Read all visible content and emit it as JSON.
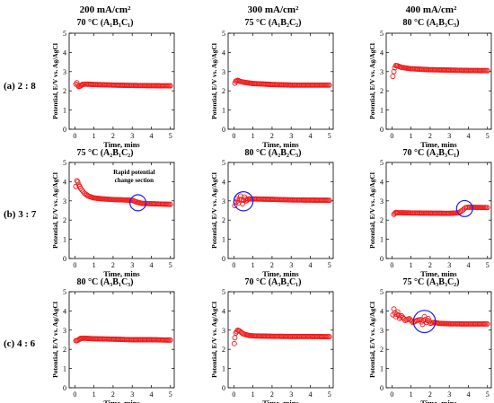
{
  "column_headers": [
    {
      "density": "200 mA/cm²"
    },
    {
      "density": "300 mA/cm²"
    },
    {
      "density": "400 mA/cm²"
    }
  ],
  "row_labels": [
    "(a) 2 : 8",
    "(b) 3 : 7",
    "(c) 4 : 6"
  ],
  "axis": {
    "xlabel": "Time, mins",
    "ylabel": "Potential, E/V vs. Ag/AgCl",
    "xlim": [
      -0.3,
      5.2
    ],
    "ylim": [
      0,
      5
    ],
    "xticks": [
      "0",
      "1",
      "2",
      "3",
      "4",
      "5"
    ],
    "yticks": [
      "0",
      "1",
      "2",
      "3",
      "4",
      "5"
    ]
  },
  "colors": {
    "series": "#ee1c1c",
    "circle": "#1a1aff"
  },
  "annotation_text": "Rapid potential change section",
  "chart_data": [
    {
      "type": "scatter",
      "title": "70 °C (A₁B₁C₁)",
      "panel": "a1",
      "points": [
        [
          0.05,
          2.35
        ],
        [
          0.1,
          2.42
        ],
        [
          0.15,
          2.3
        ],
        [
          0.2,
          2.22
        ],
        [
          0.3,
          2.26
        ],
        [
          0.4,
          2.34
        ],
        [
          0.6,
          2.35
        ],
        [
          1,
          2.33
        ],
        [
          2,
          2.3
        ],
        [
          3,
          2.28
        ],
        [
          4,
          2.27
        ],
        [
          5,
          2.26
        ]
      ],
      "circles": []
    },
    {
      "type": "scatter",
      "title": "75 °C (A₁B₂C₂)",
      "panel": "a2",
      "points": [
        [
          0.05,
          2.4
        ],
        [
          0.1,
          2.5
        ],
        [
          0.2,
          2.55
        ],
        [
          0.3,
          2.5
        ],
        [
          0.5,
          2.45
        ],
        [
          1,
          2.38
        ],
        [
          2,
          2.33
        ],
        [
          3,
          2.3
        ],
        [
          4,
          2.3
        ],
        [
          5,
          2.3
        ]
      ],
      "circles": []
    },
    {
      "type": "scatter",
      "title": "80 °C (A₁B₃C₃)",
      "panel": "a3",
      "points": [
        [
          0.05,
          2.75
        ],
        [
          0.1,
          3.0
        ],
        [
          0.15,
          3.2
        ],
        [
          0.2,
          3.32
        ],
        [
          0.3,
          3.3
        ],
        [
          0.5,
          3.22
        ],
        [
          1,
          3.15
        ],
        [
          2,
          3.1
        ],
        [
          3,
          3.08
        ],
        [
          4,
          3.06
        ],
        [
          5,
          3.05
        ]
      ],
      "circles": []
    },
    {
      "type": "scatter",
      "title": "75 °C (A₂B₁C₂)",
      "panel": "b1",
      "points": [
        [
          0.05,
          3.75
        ],
        [
          0.1,
          4.05
        ],
        [
          0.15,
          4.0
        ],
        [
          0.2,
          3.85
        ],
        [
          0.3,
          3.65
        ],
        [
          0.5,
          3.4
        ],
        [
          0.7,
          3.25
        ],
        [
          1,
          3.15
        ],
        [
          1.5,
          3.1
        ],
        [
          2,
          3.07
        ],
        [
          2.5,
          3.05
        ],
        [
          3,
          3.03
        ],
        [
          3.2,
          2.95
        ],
        [
          3.5,
          2.87
        ],
        [
          4,
          2.85
        ],
        [
          5,
          2.82
        ]
      ],
      "circles": [
        {
          "x": 3.3,
          "y": 2.9,
          "r": 0.42
        }
      ]
    },
    {
      "type": "scatter",
      "title": "80 °C (A₂B₂C₃)",
      "panel": "b2",
      "points": [
        [
          0.05,
          2.75
        ],
        [
          0.15,
          3.1
        ],
        [
          0.25,
          2.9
        ],
        [
          0.35,
          3.25
        ],
        [
          0.45,
          2.85
        ],
        [
          0.55,
          3.2
        ],
        [
          0.65,
          3.0
        ],
        [
          0.75,
          3.1
        ],
        [
          1,
          3.1
        ],
        [
          2,
          3.08
        ],
        [
          3,
          3.05
        ],
        [
          4,
          3.04
        ],
        [
          5,
          3.03
        ]
      ],
      "circles": [
        {
          "x": 0.5,
          "y": 2.98,
          "r": 0.5
        }
      ]
    },
    {
      "type": "scatter",
      "title": "70 °C (A₂B₃C₁)",
      "panel": "b3",
      "points": [
        [
          0.1,
          2.3
        ],
        [
          0.2,
          2.4
        ],
        [
          0.3,
          2.38
        ],
        [
          0.5,
          2.38
        ],
        [
          1,
          2.37
        ],
        [
          2,
          2.36
        ],
        [
          3,
          2.35
        ],
        [
          3.5,
          2.38
        ],
        [
          3.7,
          2.52
        ],
        [
          3.85,
          2.65
        ],
        [
          4,
          2.67
        ],
        [
          4.5,
          2.66
        ],
        [
          5,
          2.65
        ]
      ],
      "circles": [
        {
          "x": 3.8,
          "y": 2.6,
          "r": 0.42
        }
      ]
    },
    {
      "type": "scatter",
      "title": "80 °C (A₃B₁C₃)",
      "panel": "c1",
      "points": [
        [
          0.05,
          2.45
        ],
        [
          0.1,
          2.45
        ],
        [
          0.2,
          2.5
        ],
        [
          0.3,
          2.57
        ],
        [
          0.5,
          2.58
        ],
        [
          1,
          2.55
        ],
        [
          2,
          2.53
        ],
        [
          3,
          2.5
        ],
        [
          4,
          2.5
        ],
        [
          5,
          2.48
        ]
      ],
      "circles": []
    },
    {
      "type": "scatter",
      "title": "70 °C (A₃B₂C₁)",
      "panel": "c2",
      "points": [
        [
          0.02,
          2.3
        ],
        [
          0.05,
          2.6
        ],
        [
          0.1,
          2.85
        ],
        [
          0.2,
          3.0
        ],
        [
          0.3,
          2.95
        ],
        [
          0.5,
          2.8
        ],
        [
          0.8,
          2.72
        ],
        [
          1,
          2.7
        ],
        [
          2,
          2.68
        ],
        [
          3,
          2.67
        ],
        [
          4,
          2.67
        ],
        [
          5,
          2.66
        ]
      ],
      "circles": []
    },
    {
      "type": "scatter",
      "title": "75 °C (A₃B₃C₂)",
      "panel": "c3",
      "points": [
        [
          0.05,
          3.8
        ],
        [
          0.1,
          4.1
        ],
        [
          0.2,
          3.7
        ],
        [
          0.3,
          3.95
        ],
        [
          0.4,
          3.6
        ],
        [
          0.5,
          3.75
        ],
        [
          0.7,
          3.5
        ],
        [
          0.9,
          3.6
        ],
        [
          1.1,
          3.4
        ],
        [
          1.3,
          3.5
        ],
        [
          1.5,
          3.55
        ],
        [
          1.6,
          3.3
        ],
        [
          1.7,
          3.7
        ],
        [
          1.8,
          3.4
        ],
        [
          1.9,
          3.6
        ],
        [
          2,
          3.35
        ],
        [
          2.2,
          3.4
        ],
        [
          2.5,
          3.35
        ],
        [
          3,
          3.33
        ],
        [
          4,
          3.32
        ],
        [
          5,
          3.32
        ]
      ],
      "circles": [
        {
          "x": 1.7,
          "y": 3.45,
          "r": 0.58
        }
      ]
    }
  ]
}
